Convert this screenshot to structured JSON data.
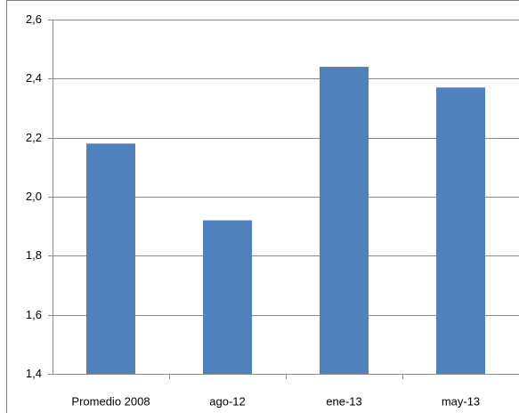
{
  "chart_data": {
    "type": "bar",
    "categories": [
      "Promedio 2008",
      "ago-12",
      "ene-13",
      "may-13"
    ],
    "values": [
      2.18,
      1.92,
      2.44,
      2.37
    ],
    "color": "#4f81bd",
    "ylim": [
      1.4,
      2.6
    ],
    "yticks": [
      {
        "value": 1.4,
        "label": "1,4"
      },
      {
        "value": 1.6,
        "label": "1,6"
      },
      {
        "value": 1.8,
        "label": "1,8"
      },
      {
        "value": 2.0,
        "label": "2,0"
      },
      {
        "value": 2.2,
        "label": "2,2"
      },
      {
        "value": 2.4,
        "label": "2,4"
      },
      {
        "value": 2.6,
        "label": "2,6"
      }
    ],
    "grid": true
  }
}
